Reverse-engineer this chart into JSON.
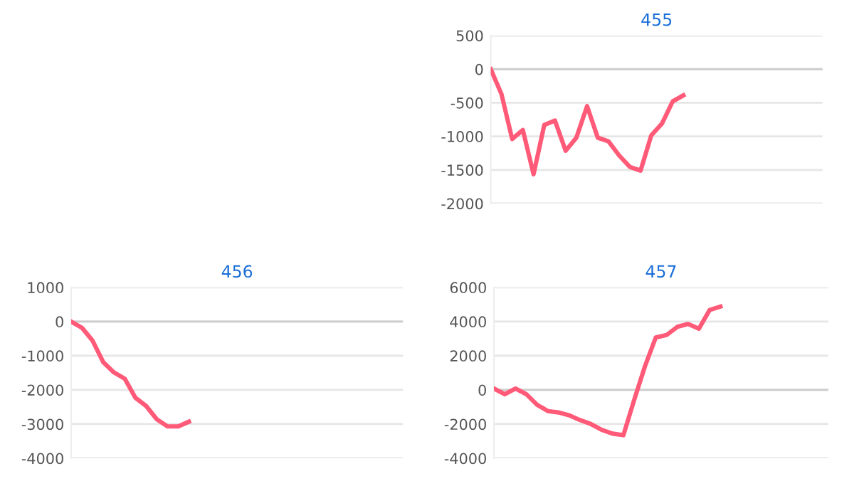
{
  "chart_data": [
    {
      "type": "line",
      "title": "455",
      "categories": [
        null,
        null,
        null,
        null,
        null,
        null,
        null,
        null,
        null,
        null,
        null,
        null,
        null,
        null,
        null,
        null,
        null,
        null,
        null,
        null,
        null,
        null,
        null,
        null,
        null,
        null,
        null,
        null,
        null,
        null,
        null,
        null
      ],
      "series": [
        {
          "color": "#ff5a78",
          "values": [
            0,
            -370,
            -1040,
            -905,
            -1565,
            -830,
            -765,
            -1215,
            -1020,
            -550,
            -1020,
            -1075,
            -1285,
            -1455,
            -1510,
            -985,
            -810,
            -480,
            -390,
            null,
            null,
            null,
            null,
            null,
            null,
            null,
            null,
            null,
            null,
            null,
            null,
            null
          ]
        }
      ],
      "ylim": [
        -2000,
        500
      ],
      "yticks": [
        -2000,
        -1500,
        -1000,
        -500,
        0,
        500
      ],
      "grid": "y",
      "tick_labels": "y",
      "marker": "none",
      "line_style": "solid"
    },
    {
      "type": "line",
      "title": "456",
      "categories": [
        null,
        null,
        null,
        null,
        null,
        null,
        null,
        null,
        null,
        null,
        null,
        null,
        null,
        null,
        null,
        null,
        null,
        null,
        null,
        null,
        null,
        null,
        null,
        null,
        null,
        null,
        null,
        null,
        null,
        null,
        null,
        null
      ],
      "series": [
        {
          "color": "#ff5a78",
          "values": [
            0,
            -180,
            -560,
            -1190,
            -1490,
            -1670,
            -2230,
            -2470,
            -2860,
            -3070,
            -3070,
            -2930,
            null,
            null,
            null,
            null,
            null,
            null,
            null,
            null,
            null,
            null,
            null,
            null,
            null,
            null,
            null,
            null,
            null,
            null,
            null,
            null
          ]
        }
      ],
      "ylim": [
        -4000,
        1000
      ],
      "yticks": [
        -4000,
        -3000,
        -2000,
        -1000,
        0,
        1000
      ],
      "grid": "y",
      "tick_labels": "y",
      "marker": "none",
      "line_style": "solid"
    },
    {
      "type": "line",
      "title": "457",
      "categories": [
        null,
        null,
        null,
        null,
        null,
        null,
        null,
        null,
        null,
        null,
        null,
        null,
        null,
        null,
        null,
        null,
        null,
        null,
        null,
        null,
        null,
        null,
        null,
        null,
        null,
        null,
        null,
        null,
        null,
        null,
        null,
        null
      ],
      "series": [
        {
          "color": "#ff5a78",
          "values": [
            80,
            -250,
            80,
            -250,
            -870,
            -1240,
            -1320,
            -1490,
            -1770,
            -2000,
            -2340,
            -2560,
            -2650,
            -590,
            1380,
            3070,
            3210,
            3690,
            3860,
            3580,
            4680,
            4880,
            null,
            null,
            null,
            null,
            null,
            null,
            null,
            null,
            null,
            null
          ]
        }
      ],
      "ylim": [
        -4000,
        6000
      ],
      "yticks": [
        -4000,
        -2000,
        0,
        2000,
        4000,
        6000
      ],
      "grid": "y",
      "tick_labels": "y",
      "marker": "none",
      "line_style": "solid"
    }
  ]
}
